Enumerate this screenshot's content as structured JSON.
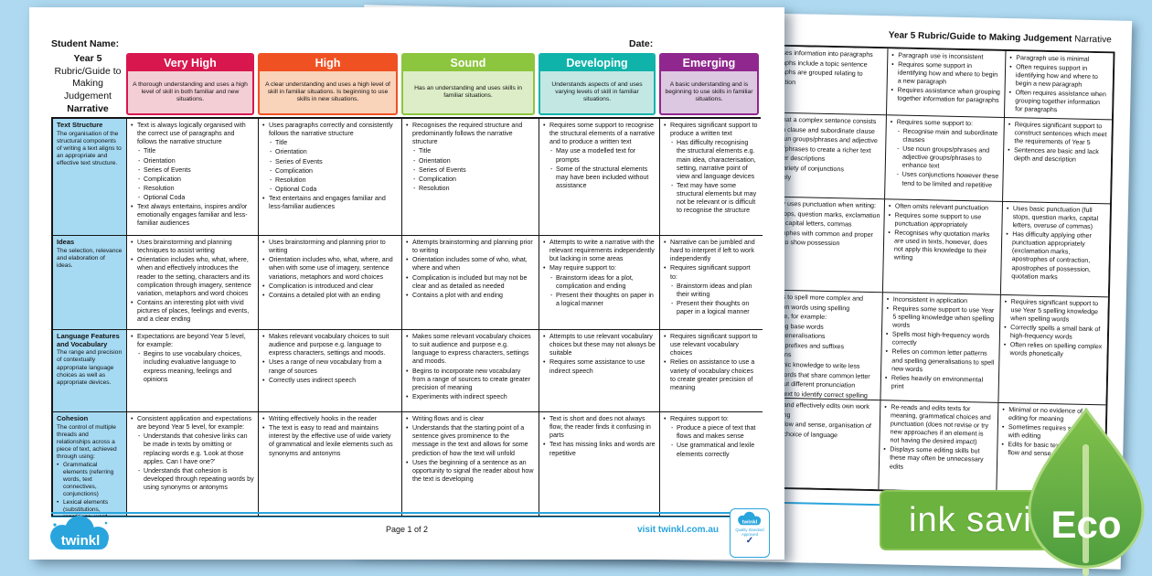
{
  "page1": {
    "student_name_label": "Student Name:",
    "date_label": "Date:",
    "title": {
      "line1": "Year 5",
      "line2": "Rubric/Guide to",
      "line3": "Making Judgement",
      "line4": "Narrative"
    },
    "columns": [
      {
        "id": "very-high",
        "label": "Very High",
        "header_color": "#d8174f",
        "tint_color": "#f3ced5",
        "description": "A thorough understanding and uses a high level of skill in both familiar and new situations."
      },
      {
        "id": "high",
        "label": "High",
        "header_color": "#f05123",
        "tint_color": "#f9d3ba",
        "description": "A clear understanding and uses a high level of skill in familiar situations. Is beginning to use skills in new situations."
      },
      {
        "id": "sound",
        "label": "Sound",
        "header_color": "#8cc63e",
        "tint_color": "#ddedc8",
        "description": "Has an understanding and uses skills in familiar situations."
      },
      {
        "id": "developing",
        "label": "Developing",
        "header_color": "#10b3aa",
        "tint_color": "#c3e8e4",
        "description": "Understands aspects of and uses varying levels of skill in familiar situations."
      },
      {
        "id": "emerging",
        "label": "Emerging",
        "header_color": "#90278e",
        "tint_color": "#ddc8e1",
        "description": "A basic understanding and is beginning to use skills in familiar situations."
      }
    ],
    "rows": [
      {
        "name": "Text Structure",
        "description": [
          [
            0,
            "The organisation of the structural components of writing a text aligns to an appropriate and effective text structure."
          ]
        ],
        "cells": [
          [
            [
              1,
              "Text is always logically organised with the correct use of paragraphs and follows the narrative structure"
            ],
            [
              2,
              "Title"
            ],
            [
              2,
              "Orientation"
            ],
            [
              2,
              "Series of Events"
            ],
            [
              2,
              "Complication"
            ],
            [
              2,
              "Resolution"
            ],
            [
              2,
              "Optional Coda"
            ],
            [
              1,
              "Text always entertains, inspires and/or emotionally engages familiar and less-familiar audiences"
            ]
          ],
          [
            [
              1,
              "Uses paragraphs correctly and consistently follows the narrative structure"
            ],
            [
              2,
              "Title"
            ],
            [
              2,
              "Orientation"
            ],
            [
              2,
              "Series of Events"
            ],
            [
              2,
              "Complication"
            ],
            [
              2,
              "Resolution"
            ],
            [
              2,
              "Optional Coda"
            ],
            [
              1,
              "Text entertains and engages familiar and less-familiar audiences"
            ]
          ],
          [
            [
              1,
              "Recognises the required structure and predominantly follows the narrative structure"
            ],
            [
              2,
              "Title"
            ],
            [
              2,
              "Orientation"
            ],
            [
              2,
              "Series of Events"
            ],
            [
              2,
              "Complication"
            ],
            [
              2,
              "Resolution"
            ]
          ],
          [
            [
              1,
              "Requires some support to recognise the structural elements of a narrative and to produce a written text"
            ],
            [
              2,
              "May use a modelled text for prompts"
            ],
            [
              2,
              "Some of the structural elements may have been included without assistance"
            ]
          ],
          [
            [
              1,
              "Requires significant support to produce a written text"
            ],
            [
              2,
              "Has difficulty recognising the structural elements e.g. main idea, characterisation, setting, narrative point of view and language devices"
            ],
            [
              2,
              "Text may have some structural elements but may not be relevant or is difficult to recognise the structure"
            ]
          ]
        ]
      },
      {
        "name": "Ideas",
        "description": [
          [
            0,
            "The selection, relevance and elaboration of ideas."
          ]
        ],
        "cells": [
          [
            [
              1,
              "Uses brainstorming and planning techniques to assist writing"
            ],
            [
              1,
              "Orientation includes who, what, where, when and effectively introduces the reader to the setting, characters and its complication through imagery, sentence variation, metaphors and word choices"
            ],
            [
              1,
              "Contains an interesting plot with vivid pictures of places, feelings and events, and a clear ending"
            ]
          ],
          [
            [
              1,
              "Uses brainstorming and planning prior to writing"
            ],
            [
              1,
              "Orientation includes who, what, where, and when with some use of imagery, sentence variations, metaphors and word choices"
            ],
            [
              1,
              "Complication is introduced and clear"
            ],
            [
              1,
              "Contains a detailed plot with an ending"
            ]
          ],
          [
            [
              1,
              "Attempts brainstorming and planning prior to writing"
            ],
            [
              1,
              "Orientation includes some of who, what, where and when"
            ],
            [
              1,
              "Complication is included but may not be clear and as detailed as needed"
            ],
            [
              1,
              "Contains a plot with and ending"
            ]
          ],
          [
            [
              1,
              "Attempts to write a narrative with the relevant requirements independently but lacking in some areas"
            ],
            [
              1,
              "May require support to:"
            ],
            [
              2,
              "Brainstorm ideas for a plot, complication and ending"
            ],
            [
              2,
              "Present their thoughts on paper in a logical manner"
            ]
          ],
          [
            [
              1,
              "Narrative can be jumbled and hard to interpret if left to work independently"
            ],
            [
              1,
              "Requires significant support to:"
            ],
            [
              2,
              "Brainstorm ideas and plan their writing"
            ],
            [
              2,
              "Present their thoughts on paper in a logical manner"
            ]
          ]
        ]
      },
      {
        "name": "Language Features and Vocabulary",
        "description": [
          [
            0,
            "The range and precision of contextually appropriate language choices as well as appropriate devices."
          ]
        ],
        "cells": [
          [
            [
              1,
              "Expectations are beyond Year 5 level, for example:"
            ],
            [
              2,
              "Begins to use vocabulary choices, including evaluative language to express meaning, feelings and opinions"
            ]
          ],
          [
            [
              1,
              "Makes relevant vocabulary choices to suit audience and purpose e.g. language to express characters, settings and moods."
            ],
            [
              1,
              "Uses a range of new vocabulary from a range of sources"
            ],
            [
              1,
              "Correctly uses indirect speech"
            ]
          ],
          [
            [
              1,
              "Makes some relevant vocabulary choices to suit audience and purpose e.g. language to express characters, settings and moods."
            ],
            [
              1,
              "Begins to incorporate new vocabulary from a range of sources to create greater precision of meaning"
            ],
            [
              1,
              "Experiments with indirect speech"
            ]
          ],
          [
            [
              1,
              "Attempts to use relevant vocabulary choices but these may not always be suitable"
            ],
            [
              1,
              "Requires some assistance to use indirect speech"
            ]
          ],
          [
            [
              1,
              "Requires significant support to use relevant vocabulary choices"
            ],
            [
              1,
              "Relies on assistance to use a variety of vocabulary choices to create greater precision of meaning"
            ]
          ]
        ]
      },
      {
        "name": "Cohesion",
        "description": [
          [
            0,
            "The control of multiple threads and relationships across a piece of text, achieved through using:"
          ],
          [
            1,
            "Grammatical elements (referring words, text connectives, conjunctions)"
          ],
          [
            1,
            "Lexical elements (substitutions, repetitions, word association)"
          ]
        ],
        "cells": [
          [
            [
              1,
              "Consistent application and expectations are beyond Year 5 level, for example:"
            ],
            [
              2,
              "Understands that cohesive links can be made in texts by omitting or replacing words e.g. 'Look at those apples. Can I have one?'"
            ],
            [
              2,
              "Understands that cohesion is developed through repeating words by using synonyms or antonyms"
            ]
          ],
          [
            [
              1,
              "Writing effectively hooks in the reader"
            ],
            [
              1,
              "The text is easy to read and maintains interest by the effective use of wide variety of grammatical and lexile elements such as synonyms and antonyms"
            ]
          ],
          [
            [
              1,
              "Writing flows and is clear"
            ],
            [
              1,
              "Understands that the starting point of a sentence gives prominence to the message in the text and allows for some prediction of how the text will unfold"
            ],
            [
              1,
              "Uses the beginning of a sentence as an opportunity to signal the reader about how the text is developing"
            ]
          ],
          [
            [
              1,
              "Text is short and does not always flow, the reader finds it confusing in parts"
            ],
            [
              1,
              "Text has missing links and words are repetitive"
            ]
          ],
          [
            [
              1,
              "Requires support to:"
            ],
            [
              2,
              "Produce a piece of text that flows and makes sense"
            ],
            [
              2,
              "Use grammatical and lexile elements correctly"
            ]
          ]
        ]
      }
    ],
    "footer": {
      "page_label": "Page 1 of 2",
      "visit_label": "visit twinkl.com.au",
      "logo_text": "twinkl",
      "badge_logo_text": "twinkl",
      "badge_line1": "Quality Standard",
      "badge_line2": "Approved",
      "badge_check": "✓"
    }
  },
  "page2": {
    "title_bold": "Year 5 Rubric/Guide to Making Judgement",
    "title_normal": " Narrative",
    "rows": [
      {
        "colA": [
          "ses information into paragraphs",
          "aphs include a topic sentence",
          "aphs are grouped relating to",
          "ation"
        ],
        "colB": [
          [
            1,
            "Paragraph use is inconsistent"
          ],
          [
            1,
            "Requires some support in identifying how and where to begin a new paragraph"
          ],
          [
            1,
            "Requires assistance when grouping together information for paragraphs"
          ]
        ],
        "colC": [
          [
            1,
            "Paragraph use is minimal"
          ],
          [
            1,
            "Often requires support in identifying how and where to begin a new paragraph"
          ],
          [
            1,
            "Often requires assistance when grouping together information for paragraphs"
          ]
        ]
      },
      {
        "colA": [
          "that a complex sentence consists",
          "in clause and subordinate clause",
          "oun groups/phrases and adjective",
          "s/phrases to create a richer text",
          "ller descriptions",
          "variety of conjunctions",
          "vely"
        ],
        "colB": [
          [
            1,
            "Requires some support to:"
          ],
          [
            2,
            "Recognise main and subordinate clauses"
          ],
          [
            2,
            "Use noun groups/phrases and adjective groups/phrases to enhance text"
          ],
          [
            2,
            "Uses conjunctions however these tend to be limited and repetitive"
          ]
        ],
        "colC": [
          [
            1,
            "Requires significant support to construct sentences which meet the requirements of Year 5"
          ],
          [
            1,
            "Sentences are basic and lack depth and description"
          ]
        ]
      },
      {
        "colA": [
          "tly uses punctuation when writing:",
          "stops, question marks, exclamation",
          "s, capital letters, commas",
          "trophes with common and proper",
          "s to show possession"
        ],
        "colB": [
          [
            1,
            "Often omits relevant punctuation"
          ],
          [
            1,
            "Requires some support to use punctuation appropriately"
          ],
          [
            1,
            "Recognises why quotation marks are used in texts, however, does not apply this knowledge to their writing"
          ]
        ],
        "colC": [
          [
            1,
            "Uses basic punctuation (full stops, question marks, capital letters, overuse of commas)"
          ],
          [
            1,
            "Has difficulty applying other punctuation appropriately (exclamation marks, apostrophes of contraction, apostrophes of possession, quotation marks"
          ]
        ]
      },
      {
        "colA": [
          "pts to spell more complex and",
          "mon words using spelling",
          "dge, for example:",
          "ding base words",
          "g generalisations",
          "on prefixes and suffixes",
          "rigins",
          "honic knowledge to write less",
          "r words that share common letter",
          "s but different pronunciation",
          "ontext to identify correct spelling"
        ],
        "colB": [
          [
            1,
            "Inconsistent in application"
          ],
          [
            1,
            "Requires some support to use Year 5 spelling knowledge when spelling words"
          ],
          [
            1,
            "Spells most high-frequency words correctly"
          ],
          [
            1,
            "Relies on common letter patterns and spelling generalisations to spell new words"
          ],
          [
            1,
            "Relies heavily on environmental print"
          ]
        ],
        "colC": [
          [
            1,
            "Requires significant support to use Year 5 spelling knowledge when spelling words"
          ],
          [
            1,
            "Correctly spells a small bank of high-frequency words"
          ],
          [
            1,
            "Often relies on spelling complex words phonetically"
          ]
        ]
      },
      {
        "colA": [
          "ds and effectively edits own work",
          "ening",
          "or flow and sense, organisation of",
          "nd choice of language"
        ],
        "colB": [
          [
            1,
            "Re-reads and edits texts for meaning, grammatical choices and punctuation (does not revise or try new approaches if an element is not having the desired impact)"
          ],
          [
            1,
            "Displays some editing skills but these may often be unnecessary edits"
          ]
        ],
        "colC": [
          [
            1,
            "Minimal or no evidence of editing for meaning"
          ],
          [
            1,
            "Sometimes requires support with editing"
          ],
          [
            1,
            "Edits for basic text structure, flow and sense"
          ]
        ]
      }
    ]
  },
  "eco": {
    "bar_label": "ink saving",
    "leaf_label": "Eco"
  },
  "colors": {
    "background": "#aed9f0",
    "twinkl_blue": "#2aa4dd",
    "row_header_blue": "#a6daf3",
    "eco_bar_green": "#6bb23e",
    "eco_leaf_green": "#4f9e3f"
  }
}
